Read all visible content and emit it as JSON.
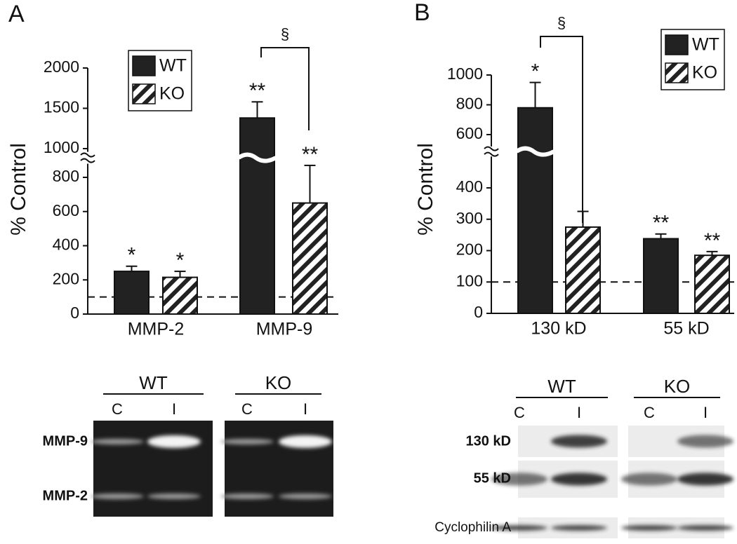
{
  "chart_data": [
    {
      "type": "bar",
      "panel_label": "A",
      "ylabel": "% Control",
      "categories": [
        "MMP-2",
        "MMP-9"
      ],
      "y_segments": [
        {
          "ylim": [
            0,
            880
          ],
          "yticks": [
            0,
            200,
            400,
            600,
            800
          ]
        },
        {
          "ylim": [
            960,
            2000
          ],
          "yticks": [
            1000,
            1500,
            2000
          ]
        }
      ],
      "reference_line": 100,
      "legend": "top-left",
      "significance": "§",
      "series": [
        {
          "name": "WT",
          "color": "#222222",
          "values": [
            250,
            1380
          ],
          "errors": [
            30,
            200
          ],
          "annotations": [
            "*",
            "**"
          ]
        },
        {
          "name": "KO",
          "color": "#222222",
          "pattern": "hatch",
          "values": [
            215,
            650
          ],
          "errors": [
            35,
            220
          ],
          "annotations": [
            "*",
            "**"
          ]
        }
      ]
    },
    {
      "type": "bar",
      "panel_label": "B",
      "ylabel": "% Control",
      "categories": [
        "130 kD",
        "55 kD"
      ],
      "y_segments": [
        {
          "ylim": [
            0,
            500
          ],
          "yticks": [
            0,
            100,
            200,
            300,
            400
          ]
        },
        {
          "ylim": [
            520,
            1000
          ],
          "yticks": [
            600,
            800,
            1000
          ]
        }
      ],
      "reference_line": 100,
      "legend": "top-right",
      "significance": "§",
      "series": [
        {
          "name": "WT",
          "color": "#222222",
          "values": [
            780,
            238
          ],
          "errors": [
            170,
            15
          ],
          "annotations": [
            "*",
            "**"
          ]
        },
        {
          "name": "KO",
          "color": "#222222",
          "pattern": "hatch",
          "values": [
            275,
            185
          ],
          "errors": [
            50,
            12
          ],
          "annotations": [
            null,
            "**"
          ]
        }
      ]
    }
  ],
  "blots": [
    {
      "groups": [
        {
          "label": "WT",
          "lanes": [
            "C",
            "I"
          ]
        },
        {
          "label": "KO",
          "lanes": [
            "C",
            "I"
          ]
        }
      ],
      "rows": [
        "MMP-9",
        "MMP-2"
      ]
    },
    {
      "groups": [
        {
          "label": "WT",
          "lanes": [
            "C",
            "I"
          ]
        },
        {
          "label": "KO",
          "lanes": [
            "C",
            "I"
          ]
        }
      ],
      "rows": [
        "130 kD",
        "55 kD",
        "Cyclophilin A"
      ]
    }
  ]
}
